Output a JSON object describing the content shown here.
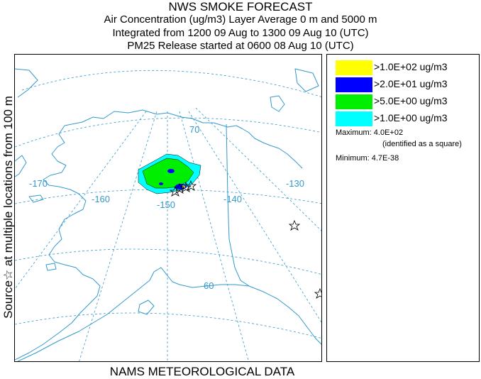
{
  "header": {
    "line1": "NWS SMOKE FORECAST",
    "line2": "Air Concentration (ug/m3) Layer Average    0 m and  5000 m",
    "line3": "Integrated from 1200 09 Aug to 1300 09 Aug 10 (UTC)",
    "line4": "PM25 Release started at 0600 08 Aug 10 (UTC)"
  },
  "side_label": "Source☆   at multiple locations   from  100 m",
  "bottom_label": "NAMS METEOROLOGICAL DATA",
  "map": {
    "lat_labels": [
      "70",
      "60"
    ],
    "lon_labels": [
      "-170",
      "-160",
      "-150",
      "-140",
      "-130"
    ],
    "colors": {
      "land_line": "#3399cc",
      "grid_line": "#3399cc",
      "label": "#3399cc",
      "band_1": "#00ffff",
      "band_2": "#00ee00",
      "band_3": "#0000ff",
      "band_4": "#ffff00"
    }
  },
  "legend": {
    "items": [
      {
        "label": ">1.0E+02 ug/m3",
        "color": "#ffff00"
      },
      {
        "label": ">2.0E+01 ug/m3",
        "color": "#0000ff"
      },
      {
        "label": ">5.0E+00 ug/m3",
        "color": "#00ee00"
      },
      {
        "label": ">1.0E+00 ug/m3",
        "color": "#00ffff"
      }
    ],
    "maximum_label": "Maximum: 4.0E+02",
    "maximum_note": "(identified as a square)",
    "minimum_label": "Minimum: 4.7E-38"
  }
}
